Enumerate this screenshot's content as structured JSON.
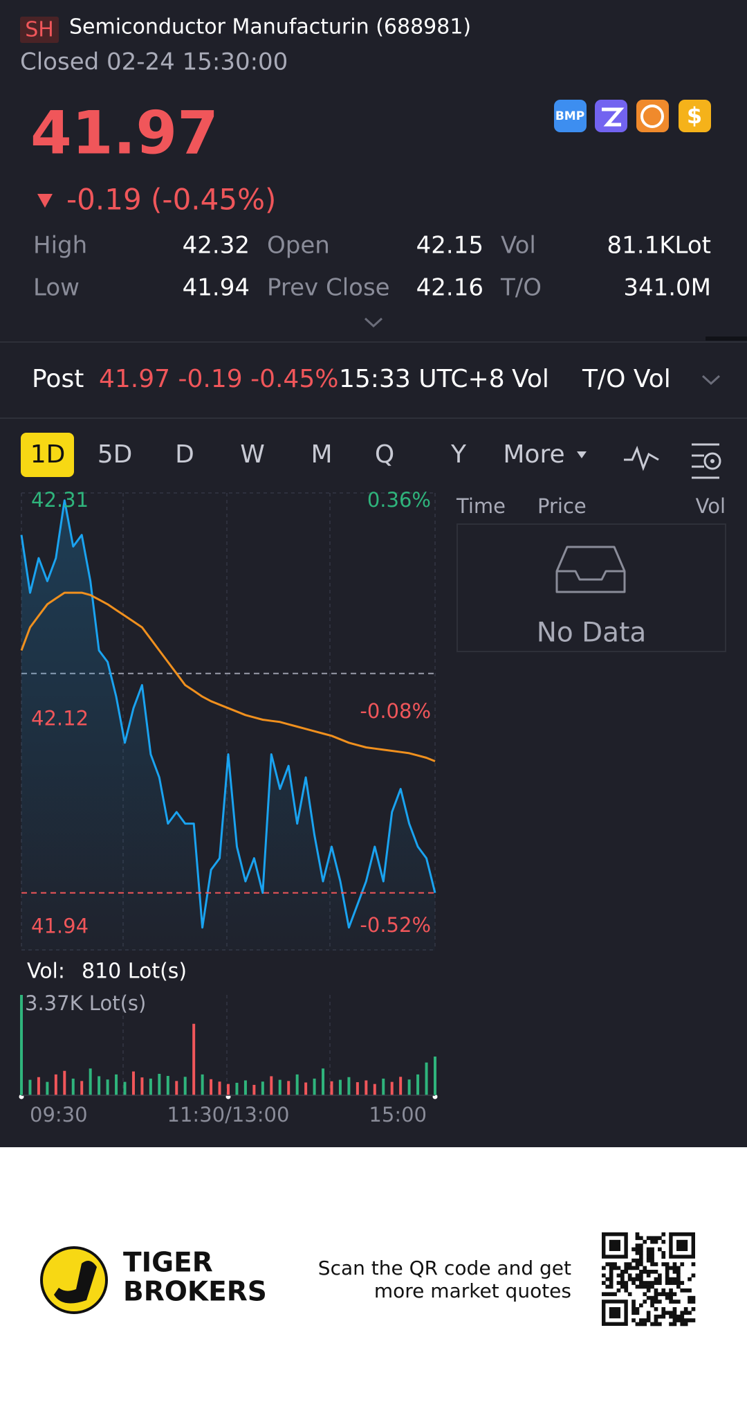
{
  "header": {
    "exchange": "SH",
    "title": "Semiconductor Manufacturin (688981)",
    "status": "Closed 02-24 15:30:00"
  },
  "quote": {
    "price": 41.97,
    "change": "-0.19 (-0.45%)",
    "stats": [
      {
        "label": "High",
        "value": 42.32
      },
      {
        "label": "Open",
        "value": 42.15
      },
      {
        "label": "Vol",
        "value": "81.1KLot"
      },
      {
        "label": "Low",
        "value": 41.94
      },
      {
        "label": "Prev Close",
        "value": 42.16
      },
      {
        "label": "T/O",
        "value": "341.0M"
      }
    ]
  },
  "post": {
    "label": "Post",
    "quote": "41.97 -0.19 -0.45%",
    "time": "15:33 UTC+8",
    "tabs": [
      "Vol",
      "T/O Vol"
    ]
  },
  "period_tabs": [
    "1D",
    "5D",
    "D",
    "W",
    "M",
    "Q",
    "Y",
    "More"
  ],
  "chart_data": {
    "type": "line",
    "categories": [
      "09:30",
      null,
      null,
      null,
      null,
      null,
      null,
      null,
      null,
      null,
      null,
      null,
      null,
      null,
      null,
      null,
      null,
      null,
      null,
      null,
      null,
      null,
      null,
      null,
      "11:30/13:00",
      null,
      null,
      null,
      null,
      null,
      null,
      null,
      null,
      null,
      null,
      null,
      null,
      null,
      null,
      null,
      null,
      null,
      null,
      null,
      null,
      null,
      null,
      null,
      "15:00"
    ],
    "series": [
      {
        "color": "#1aa3f0",
        "values": [
          42.28,
          42.23,
          42.26,
          42.24,
          42.26,
          42.31,
          42.27,
          42.28,
          42.24,
          42.18,
          42.17,
          42.14,
          42.1,
          42.13,
          42.15,
          42.09,
          42.07,
          42.03,
          42.04,
          42.03,
          42.03,
          41.94,
          41.99,
          42.0,
          42.09,
          42.01,
          41.98,
          42.0,
          41.97,
          42.09,
          42.06,
          42.08,
          42.03,
          42.07,
          42.02,
          41.98,
          42.01,
          41.98,
          41.94,
          41.96,
          41.98,
          42.01,
          41.98,
          42.04,
          42.06,
          42.03,
          42.01,
          42.0,
          41.97
        ]
      },
      {
        "color": "#f0901e",
        "values": [
          42.18,
          42.2,
          42.21,
          42.22,
          42.225,
          42.23,
          42.23,
          42.23,
          42.228,
          42.224,
          42.22,
          42.215,
          42.21,
          42.205,
          42.2,
          42.19,
          42.18,
          42.17,
          42.16,
          42.15,
          42.145,
          42.14,
          42.136,
          42.133,
          42.13,
          42.127,
          42.124,
          42.122,
          42.12,
          42.119,
          42.118,
          42.116,
          42.114,
          42.112,
          42.11,
          42.108,
          42.106,
          42.103,
          42.1,
          42.098,
          42.096,
          42.095,
          42.094,
          42.093,
          42.092,
          42.091,
          42.089,
          42.087,
          42.084
        ]
      }
    ],
    "ylim": [
      41.92,
      42.32
    ],
    "yticks": [
      42.31,
      42.12,
      41.94
    ],
    "y2lim": [
      -0.57,
      0.38
    ],
    "y2ticks": [
      {
        "value": 0.36,
        "label": "0.36%"
      },
      {
        "value": -0.08,
        "label": "-0.08%"
      },
      {
        "value": -0.52,
        "label": "-0.52%"
      }
    ],
    "prev_close": 42.16,
    "last": 41.97,
    "up_color": "#f0565a",
    "down_color": "#2fb47c",
    "volume": {
      "label": "Vol:",
      "value_label": "810 Lot(s)",
      "max_label": "3.37K Lot(s)",
      "ylim": [
        0,
        3370
      ],
      "values": [
        3370,
        520,
        610,
        450,
        700,
        820,
        560,
        480,
        900,
        640,
        530,
        700,
        450,
        800,
        600,
        560,
        720,
        650,
        480,
        620,
        2400,
        700,
        540,
        460,
        380,
        420,
        500,
        350,
        460,
        640,
        520,
        480,
        700,
        430,
        560,
        900,
        470,
        520,
        610,
        440,
        500,
        380,
        560,
        450,
        620,
        530,
        700,
        1100,
        1300
      ]
    }
  },
  "trades_panel": {
    "columns": [
      "Time",
      "Price",
      "Vol"
    ],
    "empty": "No Data"
  },
  "footer": {
    "brand": [
      "TIGER",
      "BROKERS"
    ],
    "qr_text": [
      "Scan the QR code and get",
      "more market quotes"
    ]
  }
}
